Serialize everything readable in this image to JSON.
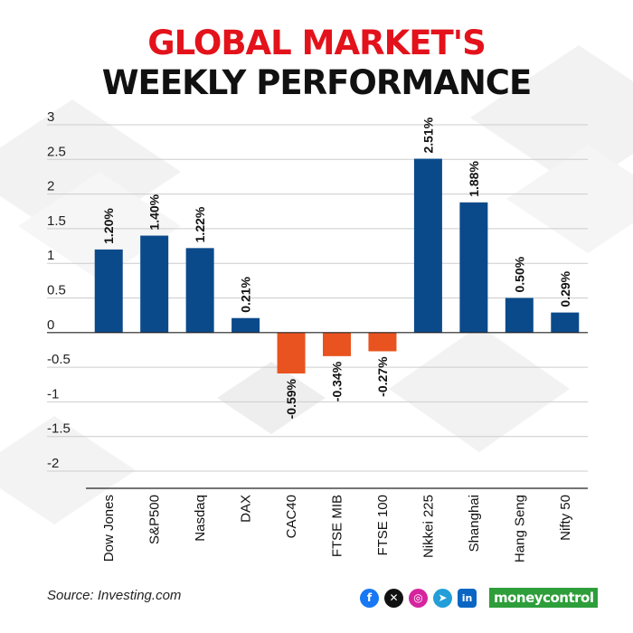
{
  "title": {
    "line1": "GLOBAL MARKET'S",
    "line2": "WEEKLY PERFORMANCE"
  },
  "chart_data": {
    "type": "bar",
    "categories": [
      "Dow Jones",
      "S&P500",
      "Nasdaq",
      "DAX",
      "CAC40",
      "FTSE MIB",
      "FTSE 100",
      "Nikkei 225",
      "Shanghai",
      "Hang Seng",
      "Nifty 50"
    ],
    "values": [
      1.2,
      1.4,
      1.22,
      0.21,
      -0.59,
      -0.34,
      -0.27,
      2.51,
      1.88,
      0.5,
      0.29
    ],
    "value_labels": [
      "1.20%",
      "1.40%",
      "1.22%",
      "0.21%",
      "-0.59%",
      "-0.34%",
      "-0.27%",
      "2.51%",
      "1.88%",
      "0.50%",
      "0.29%"
    ],
    "yticks": [
      "3",
      "2.5",
      "2",
      "1.5",
      "1",
      "0.5",
      "0",
      "-0.5",
      "-1",
      "-1.5",
      "-2"
    ],
    "ylim": [
      -2,
      3
    ],
    "grid": true,
    "colors": {
      "positive": "#0b4a8a",
      "negative": "#e8531f",
      "grid": "#cccccc",
      "axis": "#222222"
    }
  },
  "footer": {
    "source": "Source: Investing.com",
    "brand": "moneycontrol",
    "social_icons": [
      "facebook-icon",
      "x-icon",
      "instagram-icon",
      "telegram-icon",
      "linkedin-icon"
    ]
  }
}
